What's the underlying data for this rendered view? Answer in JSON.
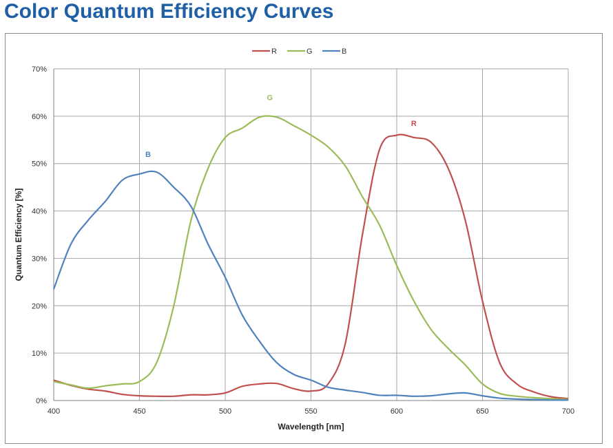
{
  "title": "Color Quantum Efficiency Curves",
  "chart_data": {
    "type": "line",
    "title": "Color Quantum Efficiency Curves",
    "xlabel": "Wavelength [nm]",
    "ylabel": "Quantum Efficiency [%]",
    "xlim": [
      400,
      700
    ],
    "ylim": [
      0,
      70
    ],
    "xticks": [
      400,
      450,
      500,
      550,
      600,
      650,
      700
    ],
    "yticks": [
      "0%",
      "10%",
      "20%",
      "30%",
      "40%",
      "50%",
      "60%",
      "70%"
    ],
    "grid": true,
    "legend_position": "top-center",
    "x": [
      400,
      410,
      420,
      430,
      440,
      450,
      460,
      470,
      480,
      490,
      500,
      510,
      520,
      530,
      540,
      550,
      560,
      570,
      580,
      590,
      600,
      610,
      620,
      630,
      640,
      650,
      660,
      670,
      680,
      690,
      700
    ],
    "series": [
      {
        "name": "R",
        "color": "#c0504d",
        "label_at": [
          610,
          58.5
        ],
        "values": [
          4.3,
          3.2,
          2.4,
          2.0,
          1.3,
          1.0,
          0.9,
          0.9,
          1.2,
          1.2,
          1.6,
          3.0,
          3.5,
          3.6,
          2.5,
          2.0,
          3.5,
          12,
          35,
          53,
          56,
          55.5,
          54.5,
          49,
          38,
          21,
          8,
          3.5,
          1.8,
          0.8,
          0.4
        ]
      },
      {
        "name": "G",
        "color": "#9bbb59",
        "label_at": [
          526,
          64
        ],
        "values": [
          4.0,
          3.3,
          2.6,
          3.1,
          3.5,
          4.0,
          8,
          20,
          38,
          49,
          55.5,
          57.5,
          59.8,
          59.8,
          58,
          56,
          53.5,
          49.5,
          43,
          37,
          28.5,
          21,
          15,
          11,
          7.5,
          3.5,
          1.5,
          0.9,
          0.6,
          0.4,
          0.2
        ]
      },
      {
        "name": "B",
        "color": "#4f81bd",
        "label_at": [
          455,
          52
        ],
        "values": [
          23.5,
          33,
          38,
          42,
          46.5,
          47.8,
          48.2,
          45,
          41,
          33,
          26,
          18,
          12.5,
          8,
          5.5,
          4.3,
          2.8,
          2.2,
          1.7,
          1.1,
          1.1,
          0.9,
          1.0,
          1.4,
          1.6,
          1.0,
          0.5,
          0.3,
          0.2,
          0.1,
          0.1
        ]
      }
    ]
  }
}
